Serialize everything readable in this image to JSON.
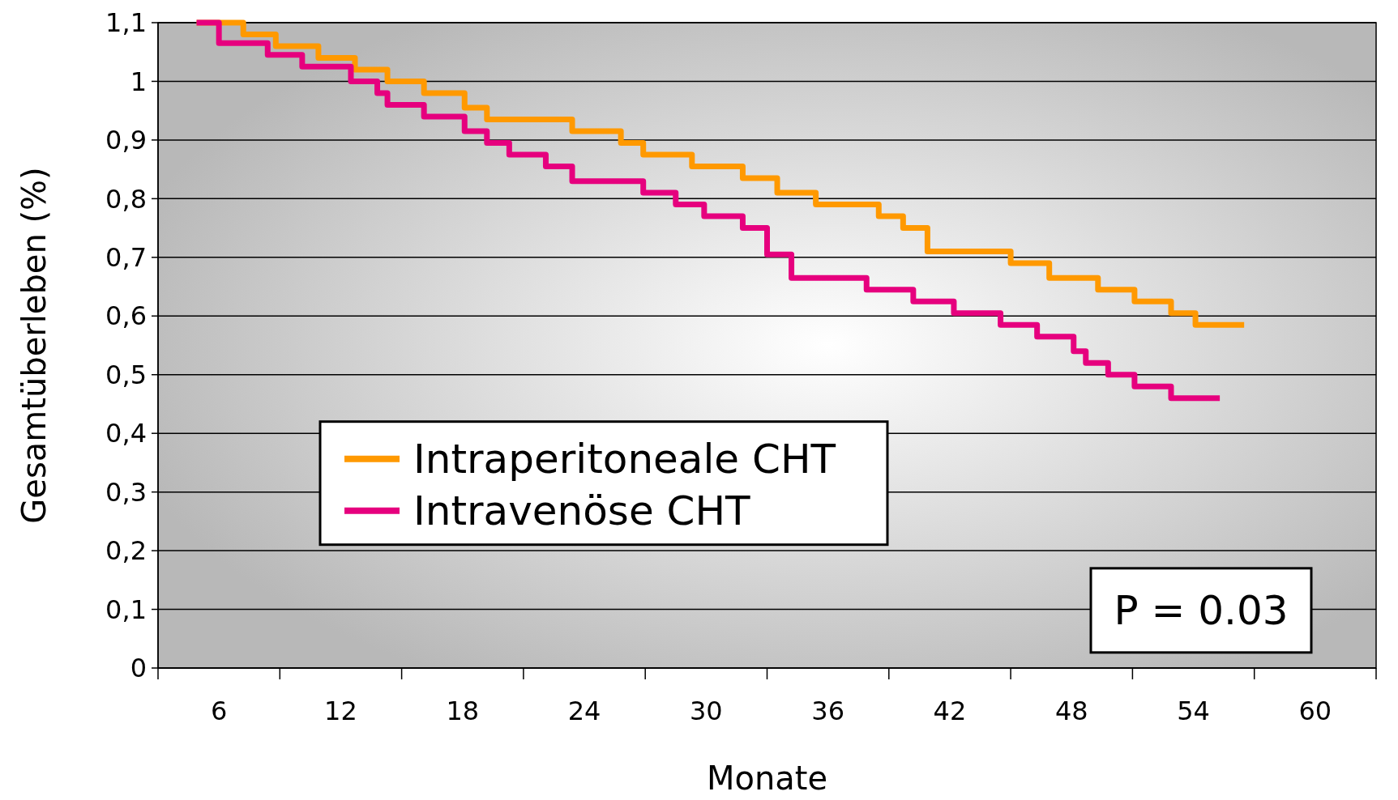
{
  "chart_data": {
    "type": "step",
    "xlabel": "Monate",
    "ylabel": "Gesamtüberleben (%)",
    "xlim": [
      3,
      63
    ],
    "xticks": [
      {
        "value": 3,
        "label": null
      },
      6,
      {
        "value": 9,
        "label": null
      },
      12,
      {
        "value": 15,
        "label": null
      },
      18,
      {
        "value": 21,
        "label": null
      },
      24,
      {
        "value": 27,
        "label": null
      },
      30,
      {
        "value": 33,
        "label": null
      },
      36,
      {
        "value": 39,
        "label": null
      },
      42,
      {
        "value": 45,
        "label": null
      },
      48,
      {
        "value": 51,
        "label": null
      },
      54,
      {
        "value": 57,
        "label": null
      },
      60,
      {
        "value": 63,
        "label": null
      }
    ],
    "ylim": [
      0,
      1.1
    ],
    "yticks": [
      0,
      {
        "value": 0.1,
        "label": "0,1"
      },
      {
        "value": 0.2,
        "label": "0,2"
      },
      {
        "value": 0.3,
        "label": "0,3"
      },
      {
        "value": 0.4,
        "label": "0,4"
      },
      {
        "value": 0.5,
        "label": "0,5"
      },
      {
        "value": 0.6,
        "label": "0,6"
      },
      {
        "value": 0.7,
        "label": "0,7"
      },
      {
        "value": 0.8,
        "label": "0,8"
      },
      {
        "value": 0.9,
        "label": "0,9"
      },
      1,
      {
        "value": 1.1,
        "label": "1,1"
      }
    ],
    "grid": "y",
    "legend": "bottom left",
    "line_style": "solid",
    "annotations": [
      "P = 0.03"
    ],
    "series": [
      {
        "name": "Intraperitoneale CHT",
        "color": "#ff9900",
        "x": [
          4.9,
          7.2,
          8.8,
          10.9,
          12.7,
          14.3,
          16.1,
          18.1,
          19.2,
          23.4,
          25.8,
          26.9,
          29.3,
          31.8,
          33.5,
          35.4,
          38.5,
          39.7,
          40.9,
          45.0,
          46.9,
          49.3,
          51.1,
          52.9,
          54.1,
          56.5
        ],
        "values": [
          1.1,
          1.08,
          1.06,
          1.04,
          1.02,
          1.0,
          0.98,
          0.955,
          0.935,
          0.915,
          0.895,
          0.875,
          0.855,
          0.835,
          0.81,
          0.79,
          0.77,
          0.75,
          0.71,
          0.69,
          0.665,
          0.645,
          0.625,
          0.605,
          0.585,
          0.585
        ]
      },
      {
        "name": "Intravenöse CHT",
        "color": "#e6007e",
        "x": [
          4.9,
          6.0,
          8.4,
          10.1,
          12.5,
          13.8,
          14.3,
          16.1,
          18.1,
          19.2,
          20.3,
          22.1,
          23.4,
          26.9,
          28.5,
          29.9,
          31.8,
          33.0,
          34.2,
          37.9,
          40.2,
          42.2,
          44.5,
          46.3,
          48.1,
          48.7,
          49.8,
          51.1,
          52.9,
          55.3
        ],
        "values": [
          1.1,
          1.065,
          1.045,
          1.025,
          1.0,
          0.98,
          0.96,
          0.94,
          0.915,
          0.895,
          0.875,
          0.855,
          0.83,
          0.81,
          0.79,
          0.77,
          0.75,
          0.705,
          0.665,
          0.645,
          0.625,
          0.605,
          0.585,
          0.565,
          0.54,
          0.52,
          0.5,
          0.48,
          0.46,
          0.46
        ]
      }
    ]
  }
}
